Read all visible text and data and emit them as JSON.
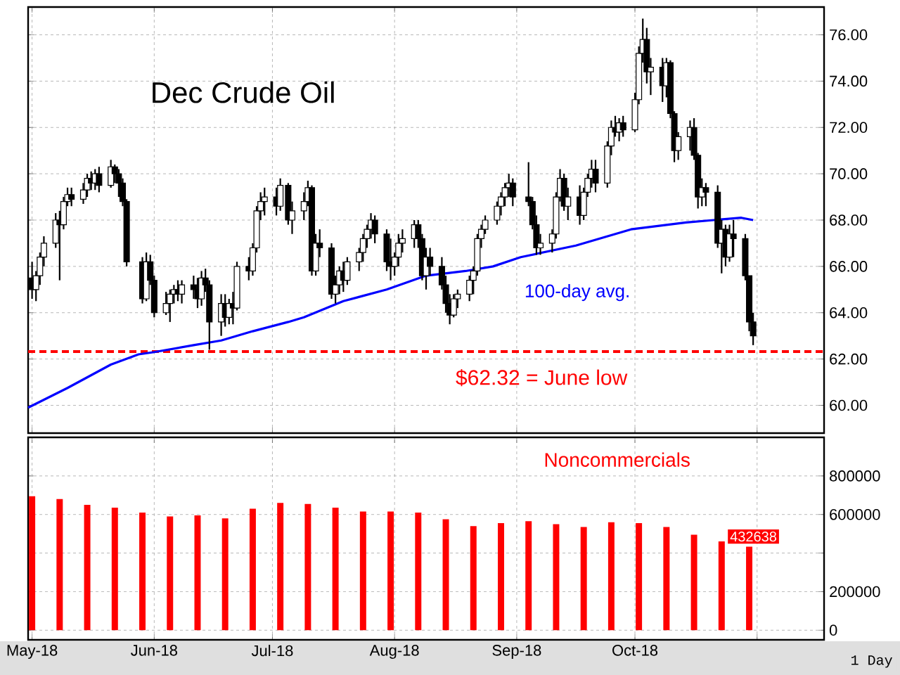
{
  "chart_data": [
    {
      "type": "candlestick",
      "title": "Dec Crude Oil",
      "grid": true,
      "tick_labels": "y",
      "xlim": [
        "2018-04-30",
        "2018-11-18"
      ],
      "xticks": [
        {
          "value": "2018-05-01",
          "label": null
        },
        {
          "value": "2018-06-01",
          "label": null
        },
        {
          "value": "2018-07-01",
          "label": null
        },
        {
          "value": "2018-08-01",
          "label": null
        },
        {
          "value": "2018-09-01",
          "label": null
        },
        {
          "value": "2018-10-01",
          "label": null
        },
        {
          "value": "2018-11-01",
          "label": null
        }
      ],
      "ylim": [
        58.8,
        77.2
      ],
      "yticks": [
        {
          "value": 60,
          "label": "60.00"
        },
        {
          "value": 62,
          "label": "62.00"
        },
        {
          "value": 64,
          "label": "64.00"
        },
        {
          "value": 66,
          "label": "66.00"
        },
        {
          "value": 68,
          "label": "68.00"
        },
        {
          "value": 70,
          "label": "70.00"
        },
        {
          "value": 72,
          "label": "72.00"
        },
        {
          "value": 74,
          "label": "74.00"
        },
        {
          "value": 76,
          "label": "76.00"
        }
      ],
      "x": [
        "2018-05-01",
        "2018-05-02",
        "2018-05-03",
        "2018-05-04",
        "2018-05-07",
        "2018-05-08",
        "2018-05-09",
        "2018-05-10",
        "2018-05-11",
        "2018-05-14",
        "2018-05-15",
        "2018-05-16",
        "2018-05-17",
        "2018-05-18",
        "2018-05-21",
        "2018-05-22",
        "2018-05-23",
        "2018-05-24",
        "2018-05-25",
        "2018-05-29",
        "2018-05-30",
        "2018-05-31",
        "2018-06-01",
        "2018-06-04",
        "2018-06-05",
        "2018-06-06",
        "2018-06-07",
        "2018-06-08",
        "2018-06-11",
        "2018-06-12",
        "2018-06-13",
        "2018-06-14",
        "2018-06-15",
        "2018-06-18",
        "2018-06-19",
        "2018-06-20",
        "2018-06-21",
        "2018-06-22",
        "2018-06-25",
        "2018-06-26",
        "2018-06-27",
        "2018-06-28",
        "2018-06-29",
        "2018-07-02",
        "2018-07-03",
        "2018-07-05",
        "2018-07-06",
        "2018-07-09",
        "2018-07-10",
        "2018-07-11",
        "2018-07-12",
        "2018-07-13",
        "2018-07-16",
        "2018-07-17",
        "2018-07-18",
        "2018-07-19",
        "2018-07-20",
        "2018-07-23",
        "2018-07-24",
        "2018-07-25",
        "2018-07-26",
        "2018-07-27",
        "2018-07-30",
        "2018-07-31",
        "2018-08-01",
        "2018-08-02",
        "2018-08-03",
        "2018-08-06",
        "2018-08-07",
        "2018-08-08",
        "2018-08-09",
        "2018-08-10",
        "2018-08-13",
        "2018-08-14",
        "2018-08-15",
        "2018-08-16",
        "2018-08-17",
        "2018-08-20",
        "2018-08-21",
        "2018-08-22",
        "2018-08-23",
        "2018-08-24",
        "2018-08-27",
        "2018-08-28",
        "2018-08-29",
        "2018-08-30",
        "2018-08-31",
        "2018-09-04",
        "2018-09-05",
        "2018-09-06",
        "2018-09-07",
        "2018-09-10",
        "2018-09-11",
        "2018-09-12",
        "2018-09-13",
        "2018-09-14",
        "2018-09-17",
        "2018-09-18",
        "2018-09-19",
        "2018-09-20",
        "2018-09-21",
        "2018-09-24",
        "2018-09-25",
        "2018-09-26",
        "2018-09-27",
        "2018-09-28",
        "2018-10-01",
        "2018-10-02",
        "2018-10-03",
        "2018-10-04",
        "2018-10-05",
        "2018-10-08",
        "2018-10-09",
        "2018-10-10",
        "2018-10-11",
        "2018-10-12",
        "2018-10-15",
        "2018-10-16",
        "2018-10-17",
        "2018-10-18",
        "2018-10-19",
        "2018-10-22",
        "2018-10-23",
        "2018-10-24",
        "2018-10-25",
        "2018-10-26",
        "2018-10-29",
        "2018-10-30",
        "2018-10-31"
      ],
      "ohlc": [
        [
          65.5,
          66.2,
          64.6,
          65.0
        ],
        [
          65.0,
          65.8,
          64.5,
          65.6
        ],
        [
          65.6,
          66.6,
          65.2,
          66.4
        ],
        [
          66.4,
          67.3,
          66.0,
          67.0
        ],
        [
          67.0,
          68.3,
          66.8,
          68.0
        ],
        [
          68.0,
          68.4,
          65.4,
          67.8
        ],
        [
          67.8,
          69.0,
          67.6,
          68.8
        ],
        [
          68.8,
          69.4,
          68.6,
          69.1
        ],
        [
          69.1,
          69.4,
          68.6,
          68.9
        ],
        [
          68.9,
          69.6,
          68.7,
          69.3
        ],
        [
          69.3,
          70.0,
          69.0,
          69.8
        ],
        [
          69.8,
          70.1,
          69.3,
          69.6
        ],
        [
          69.6,
          70.2,
          69.3,
          70.0
        ],
        [
          70.0,
          70.3,
          69.2,
          69.5
        ],
        [
          69.5,
          70.6,
          69.4,
          70.3
        ],
        [
          70.3,
          70.4,
          69.6,
          70.0
        ],
        [
          70.0,
          70.2,
          69.0,
          69.6
        ],
        [
          69.6,
          69.8,
          68.6,
          68.8
        ],
        [
          68.8,
          68.9,
          66.0,
          66.2
        ],
        [
          66.2,
          66.4,
          64.4,
          64.6
        ],
        [
          64.6,
          66.6,
          64.5,
          66.2
        ],
        [
          66.2,
          66.5,
          65.2,
          65.4
        ],
        [
          65.4,
          65.6,
          63.8,
          64.0
        ],
        [
          64.0,
          64.9,
          63.9,
          64.4
        ],
        [
          64.4,
          65.0,
          63.6,
          64.8
        ],
        [
          64.8,
          65.2,
          64.4,
          65.0
        ],
        [
          65.0,
          65.4,
          64.5,
          64.8
        ],
        [
          64.8,
          65.4,
          64.4,
          65.2
        ],
        [
          65.2,
          65.6,
          64.6,
          65.0
        ],
        [
          65.0,
          65.5,
          64.2,
          64.6
        ],
        [
          64.6,
          65.8,
          64.3,
          65.5
        ],
        [
          65.5,
          65.9,
          64.9,
          65.2
        ],
        [
          65.2,
          65.4,
          62.4,
          63.6
        ],
        [
          63.6,
          64.8,
          63.0,
          64.4
        ],
        [
          64.4,
          64.8,
          63.4,
          63.8
        ],
        [
          63.8,
          64.6,
          63.5,
          64.4
        ],
        [
          64.4,
          64.9,
          63.5,
          64.2
        ],
        [
          64.2,
          66.2,
          64.1,
          66.0
        ],
        [
          66.0,
          66.4,
          65.4,
          65.8
        ],
        [
          65.8,
          67.0,
          65.6,
          66.8
        ],
        [
          66.8,
          68.6,
          66.6,
          68.4
        ],
        [
          68.4,
          69.2,
          68.0,
          68.8
        ],
        [
          68.8,
          69.4,
          68.2,
          69.0
        ],
        [
          69.0,
          69.4,
          68.2,
          68.6
        ],
        [
          68.6,
          69.8,
          68.4,
          69.5
        ],
        [
          69.5,
          69.6,
          67.8,
          68.0
        ],
        [
          68.0,
          68.8,
          67.4,
          68.4
        ],
        [
          68.4,
          69.2,
          68.0,
          68.8
        ],
        [
          68.8,
          69.7,
          68.6,
          69.4
        ],
        [
          69.4,
          69.5,
          65.6,
          65.8
        ],
        [
          65.8,
          67.4,
          65.6,
          67.0
        ],
        [
          67.0,
          67.6,
          66.4,
          66.8
        ],
        [
          66.8,
          67.0,
          64.6,
          64.8
        ],
        [
          64.8,
          65.6,
          64.4,
          65.2
        ],
        [
          65.2,
          66.0,
          64.8,
          65.8
        ],
        [
          65.8,
          66.2,
          64.9,
          65.4
        ],
        [
          65.4,
          66.4,
          65.2,
          66.2
        ],
        [
          66.2,
          66.8,
          65.8,
          66.6
        ],
        [
          66.6,
          67.4,
          66.2,
          67.2
        ],
        [
          67.2,
          67.8,
          66.8,
          67.6
        ],
        [
          67.6,
          68.3,
          67.2,
          68.0
        ],
        [
          68.0,
          68.2,
          67.0,
          67.4
        ],
        [
          67.4,
          67.6,
          65.8,
          66.2
        ],
        [
          66.2,
          67.2,
          65.4,
          66.0
        ],
        [
          66.0,
          66.6,
          65.6,
          66.4
        ],
        [
          66.4,
          67.4,
          66.0,
          67.0
        ],
        [
          67.0,
          67.6,
          66.6,
          67.2
        ],
        [
          67.2,
          68.0,
          66.8,
          67.8
        ],
        [
          67.8,
          68.0,
          66.8,
          67.2
        ],
        [
          67.2,
          67.4,
          65.4,
          65.6
        ],
        [
          65.6,
          66.8,
          65.0,
          66.4
        ],
        [
          66.4,
          66.8,
          65.6,
          66.0
        ],
        [
          66.0,
          66.4,
          65.0,
          65.2
        ],
        [
          65.2,
          65.6,
          64.0,
          64.4
        ],
        [
          64.4,
          64.8,
          63.5,
          63.9
        ],
        [
          63.9,
          64.8,
          63.8,
          64.6
        ],
        [
          64.6,
          65.0,
          64.2,
          64.8
        ],
        [
          64.8,
          65.6,
          64.5,
          65.4
        ],
        [
          65.4,
          66.0,
          64.8,
          65.8
        ],
        [
          65.8,
          67.4,
          65.6,
          67.2
        ],
        [
          67.2,
          67.8,
          66.8,
          67.6
        ],
        [
          67.6,
          68.2,
          67.4,
          68.0
        ],
        [
          68.0,
          68.8,
          67.8,
          68.6
        ],
        [
          68.6,
          69.2,
          68.2,
          69.0
        ],
        [
          69.0,
          69.6,
          68.6,
          69.4
        ],
        [
          69.4,
          70.0,
          69.0,
          69.6
        ],
        [
          69.6,
          69.8,
          68.6,
          69.0
        ],
        [
          69.0,
          70.5,
          68.6,
          68.8
        ],
        [
          68.8,
          69.0,
          67.6,
          67.8
        ],
        [
          67.8,
          68.2,
          66.5,
          66.8
        ],
        [
          66.8,
          67.4,
          66.5,
          67.0
        ],
        [
          67.0,
          67.6,
          66.6,
          67.4
        ],
        [
          67.4,
          69.2,
          67.2,
          69.0
        ],
        [
          69.0,
          70.2,
          68.8,
          69.8
        ],
        [
          69.8,
          70.0,
          68.4,
          68.6
        ],
        [
          68.6,
          69.4,
          68.0,
          69.0
        ],
        [
          69.0,
          69.5,
          67.8,
          68.2
        ],
        [
          68.2,
          69.4,
          68.0,
          69.2
        ],
        [
          69.2,
          70.0,
          69.0,
          69.8
        ],
        [
          69.8,
          70.6,
          69.4,
          70.2
        ],
        [
          70.2,
          70.6,
          69.2,
          69.6
        ],
        [
          69.6,
          71.4,
          69.4,
          71.2
        ],
        [
          71.2,
          72.3,
          70.8,
          72.0
        ],
        [
          72.0,
          72.5,
          71.6,
          71.8
        ],
        [
          71.8,
          72.4,
          71.4,
          72.2
        ],
        [
          72.2,
          72.5,
          71.6,
          71.9
        ],
        [
          71.9,
          73.5,
          71.8,
          73.2
        ],
        [
          73.2,
          75.5,
          73.0,
          75.2
        ],
        [
          75.2,
          76.7,
          74.8,
          75.8
        ],
        [
          75.8,
          76.3,
          73.9,
          74.4
        ],
        [
          74.4,
          75.0,
          73.4,
          74.6
        ],
        [
          74.6,
          75.0,
          73.1,
          73.8
        ],
        [
          73.8,
          75.0,
          73.3,
          74.8
        ],
        [
          74.8,
          74.9,
          72.4,
          72.6
        ],
        [
          72.6,
          72.7,
          70.5,
          71.0
        ],
        [
          71.0,
          71.8,
          70.6,
          71.6
        ],
        [
          71.6,
          72.3,
          71.0,
          72.0
        ],
        [
          72.0,
          72.4,
          70.6,
          70.8
        ],
        [
          70.8,
          70.9,
          68.5,
          69.0
        ],
        [
          69.0,
          69.8,
          68.6,
          69.4
        ],
        [
          69.4,
          69.6,
          68.6,
          69.2
        ],
        [
          69.2,
          69.5,
          66.8,
          67.0
        ],
        [
          67.0,
          68.0,
          65.7,
          67.6
        ],
        [
          67.6,
          67.8,
          66.0,
          66.4
        ],
        [
          66.4,
          67.8,
          66.2,
          67.4
        ],
        [
          67.4,
          68.0,
          66.4,
          67.2
        ],
        [
          67.2,
          67.4,
          65.4,
          65.6
        ],
        [
          65.6,
          65.6,
          63.2,
          63.6
        ],
        [
          63.6,
          64.0,
          62.6,
          63.0
        ]
      ],
      "series": [
        {
          "type": "line",
          "name": "100-day avg.",
          "color": "#0000ff",
          "x": [
            "2018-04-30",
            "2018-05-10",
            "2018-05-21",
            "2018-05-28",
            "2018-06-01",
            "2018-06-11",
            "2018-06-18",
            "2018-06-26",
            "2018-07-05",
            "2018-07-09",
            "2018-07-19",
            "2018-07-30",
            "2018-08-09",
            "2018-08-19",
            "2018-08-26",
            "2018-09-02",
            "2018-09-16",
            "2018-09-30",
            "2018-10-14",
            "2018-10-28",
            "2018-10-31"
          ],
          "values": [
            59.9,
            60.75,
            61.76,
            62.2,
            62.3,
            62.6,
            62.8,
            63.2,
            63.6,
            63.8,
            64.5,
            65.0,
            65.6,
            65.8,
            66.0,
            66.4,
            66.9,
            67.6,
            67.9,
            68.1,
            68.0
          ]
        }
      ],
      "ref_lines": [
        {
          "axis": "y",
          "value": 62.32,
          "label": "$62.32 = June low",
          "color": "#ff0000",
          "line_style": "dashed"
        }
      ]
    },
    {
      "type": "bar",
      "grid": true,
      "xlim": [
        "2018-04-30",
        "2018-11-18"
      ],
      "xticks": [
        {
          "value": "2018-05-01",
          "label": "May-18"
        },
        {
          "value": "2018-06-01",
          "label": "Jun-18"
        },
        {
          "value": "2018-07-01",
          "label": "Jul-18"
        },
        {
          "value": "2018-08-01",
          "label": "Aug-18"
        },
        {
          "value": "2018-09-01",
          "label": "Sep-18"
        },
        {
          "value": "2018-10-01",
          "label": "Oct-18"
        },
        {
          "value": "2018-11-01",
          "label": null
        }
      ],
      "ylim": [
        -50000,
        1000000
      ],
      "yticks": [
        0,
        200000,
        {
          "value": 400000,
          "label": null
        },
        600000,
        800000
      ],
      "x": [
        "2018-05-01",
        "2018-05-08",
        "2018-05-15",
        "2018-05-22",
        "2018-05-29",
        "2018-06-05",
        "2018-06-12",
        "2018-06-19",
        "2018-06-26",
        "2018-07-03",
        "2018-07-10",
        "2018-07-17",
        "2018-07-24",
        "2018-07-31",
        "2018-08-07",
        "2018-08-14",
        "2018-08-21",
        "2018-08-28",
        "2018-09-04",
        "2018-09-11",
        "2018-09-18",
        "2018-09-25",
        "2018-10-02",
        "2018-10-09",
        "2018-10-16",
        "2018-10-23",
        "2018-10-30"
      ],
      "series": [
        {
          "name": "Noncommercials",
          "color": "#ff0000",
          "values": [
            695000,
            680000,
            650000,
            635000,
            610000,
            590000,
            595000,
            580000,
            630000,
            660000,
            655000,
            635000,
            615000,
            615000,
            610000,
            575000,
            540000,
            555000,
            565000,
            550000,
            535000,
            560000,
            555000,
            535000,
            495000,
            460000,
            432638
          ],
          "value_labels": [
            null,
            null,
            null,
            null,
            null,
            null,
            null,
            null,
            null,
            null,
            null,
            null,
            null,
            null,
            null,
            null,
            null,
            null,
            null,
            null,
            null,
            null,
            null,
            null,
            null,
            null,
            "432638"
          ]
        }
      ],
      "annotations": [
        "1 Day"
      ]
    }
  ]
}
